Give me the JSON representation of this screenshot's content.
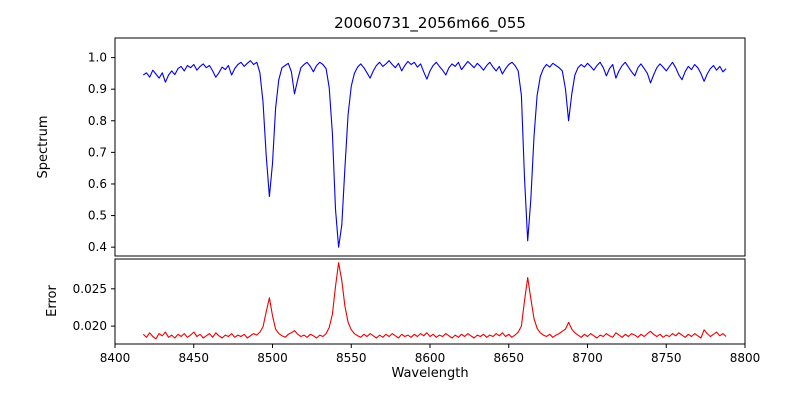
{
  "chart_data": {
    "type": "line",
    "title": "20060731_2056m66_055",
    "xlabel": "Wavelength",
    "x_range": [
      8400,
      8800
    ],
    "x_ticks": [
      8400,
      8450,
      8500,
      8550,
      8600,
      8650,
      8700,
      8750,
      8800
    ],
    "x_tick_labels": [
      "8400",
      "8450",
      "8500",
      "8550",
      "8600",
      "8650",
      "8700",
      "8750",
      "8800"
    ],
    "legend": "none",
    "grid": false,
    "panels": [
      {
        "name": "spectrum",
        "ylabel": "Spectrum",
        "color": "#0000ee",
        "ylim": [
          0.372,
          1.062
        ],
        "y_ticks": [
          0.4,
          0.5,
          0.6,
          0.7,
          0.8,
          0.9,
          1.0
        ],
        "y_tick_labels": [
          "0.4",
          "0.5",
          "0.6",
          "0.7",
          "0.8",
          "0.9",
          "1.0"
        ],
        "features": "Ca II triplet absorption lines at 8498, 8542, 8662; smaller line at 8688",
        "series": {
          "x_start": 8418,
          "x_step": 2,
          "values": [
            0.945,
            0.952,
            0.938,
            0.96,
            0.948,
            0.935,
            0.952,
            0.922,
            0.945,
            0.958,
            0.946,
            0.965,
            0.972,
            0.958,
            0.975,
            0.968,
            0.978,
            0.96,
            0.972,
            0.98,
            0.968,
            0.975,
            0.958,
            0.938,
            0.952,
            0.97,
            0.962,
            0.975,
            0.945,
            0.965,
            0.978,
            0.985,
            0.972,
            0.982,
            0.99,
            0.978,
            0.985,
            0.952,
            0.86,
            0.69,
            0.56,
            0.665,
            0.84,
            0.93,
            0.968,
            0.975,
            0.982,
            0.955,
            0.885,
            0.93,
            0.968,
            0.978,
            0.985,
            0.972,
            0.955,
            0.975,
            0.985,
            0.978,
            0.965,
            0.905,
            0.76,
            0.52,
            0.4,
            0.47,
            0.65,
            0.82,
            0.91,
            0.95,
            0.97,
            0.98,
            0.968,
            0.952,
            0.935,
            0.958,
            0.975,
            0.985,
            0.972,
            0.98,
            0.99,
            0.978,
            0.968,
            0.982,
            0.958,
            0.975,
            0.988,
            0.978,
            0.985,
            0.97,
            0.98,
            0.955,
            0.932,
            0.958,
            0.975,
            0.985,
            0.972,
            0.96,
            0.945,
            0.968,
            0.98,
            0.972,
            0.985,
            0.962,
            0.975,
            0.988,
            0.978,
            0.968,
            0.982,
            0.972,
            0.96,
            0.975,
            0.985,
            0.97,
            0.958,
            0.972,
            0.948,
            0.965,
            0.978,
            0.985,
            0.975,
            0.958,
            0.88,
            0.62,
            0.42,
            0.55,
            0.75,
            0.88,
            0.94,
            0.965,
            0.978,
            0.97,
            0.982,
            0.975,
            0.968,
            0.958,
            0.9,
            0.8,
            0.885,
            0.945,
            0.968,
            0.978,
            0.97,
            0.982,
            0.972,
            0.96,
            0.975,
            0.985,
            0.968,
            0.942,
            0.965,
            0.978,
            0.935,
            0.958,
            0.975,
            0.985,
            0.97,
            0.955,
            0.942,
            0.968,
            0.98,
            0.965,
            0.95,
            0.92,
            0.945,
            0.968,
            0.98,
            0.97,
            0.958,
            0.972,
            0.985,
            0.968,
            0.945,
            0.93,
            0.955,
            0.972,
            0.962,
            0.978,
            0.968,
            0.95,
            0.925,
            0.948,
            0.965,
            0.975,
            0.96,
            0.972,
            0.955,
            0.965
          ]
        }
      },
      {
        "name": "error",
        "ylabel": "Error",
        "color": "#ee0000",
        "ylim": [
          0.0176,
          0.029
        ],
        "y_ticks": [
          0.02,
          0.025
        ],
        "y_tick_labels": [
          "0.020",
          "0.025"
        ],
        "features": "error baseline ~0.0187 with peaks at the absorption lines: 0.0238 @8498, 0.0285 @8542, 0.0265 @8662, 0.0205 @8688",
        "series": {
          "x_start": 8418,
          "x_step": 2,
          "values": [
            0.0189,
            0.0185,
            0.0191,
            0.0186,
            0.0183,
            0.019,
            0.0187,
            0.0192,
            0.0185,
            0.0188,
            0.0184,
            0.0189,
            0.0186,
            0.019,
            0.0185,
            0.0188,
            0.0192,
            0.0186,
            0.0189,
            0.0184,
            0.0187,
            0.019,
            0.0185,
            0.0191,
            0.0187,
            0.0184,
            0.0188,
            0.0186,
            0.019,
            0.0185,
            0.0188,
            0.0186,
            0.0189,
            0.0184,
            0.0187,
            0.019,
            0.0188,
            0.0192,
            0.0199,
            0.0219,
            0.0238,
            0.0214,
            0.0196,
            0.019,
            0.0187,
            0.0185,
            0.0189,
            0.0191,
            0.0194,
            0.0189,
            0.0186,
            0.0188,
            0.0185,
            0.0189,
            0.0187,
            0.0184,
            0.0188,
            0.0186,
            0.019,
            0.0198,
            0.0216,
            0.0253,
            0.0285,
            0.0261,
            0.0227,
            0.0205,
            0.0195,
            0.019,
            0.0187,
            0.0185,
            0.0189,
            0.0186,
            0.019,
            0.0187,
            0.0184,
            0.0188,
            0.0185,
            0.0189,
            0.0186,
            0.019,
            0.0187,
            0.0184,
            0.0189,
            0.0186,
            0.0188,
            0.0185,
            0.0189,
            0.0186,
            0.019,
            0.0187,
            0.0191,
            0.0186,
            0.0189,
            0.0185,
            0.0188,
            0.0186,
            0.019,
            0.0187,
            0.0184,
            0.0188,
            0.0185,
            0.0189,
            0.0186,
            0.019,
            0.0187,
            0.0184,
            0.0188,
            0.0186,
            0.0189,
            0.0185,
            0.0188,
            0.0186,
            0.019,
            0.0187,
            0.0191,
            0.0186,
            0.0189,
            0.0185,
            0.0188,
            0.0192,
            0.02,
            0.0234,
            0.0265,
            0.0237,
            0.021,
            0.0197,
            0.0191,
            0.0188,
            0.0186,
            0.0189,
            0.0185,
            0.0188,
            0.019,
            0.0193,
            0.0196,
            0.0205,
            0.0196,
            0.0191,
            0.0188,
            0.0185,
            0.0189,
            0.0186,
            0.019,
            0.0187,
            0.0184,
            0.0188,
            0.0186,
            0.019,
            0.0187,
            0.0185,
            0.0191,
            0.0188,
            0.0185,
            0.0189,
            0.0186,
            0.019,
            0.0188,
            0.0185,
            0.0189,
            0.0186,
            0.019,
            0.0193,
            0.0189,
            0.0186,
            0.0189,
            0.0185,
            0.0188,
            0.0186,
            0.019,
            0.0187,
            0.0191,
            0.0188,
            0.0185,
            0.0189,
            0.0186,
            0.019,
            0.0187,
            0.0184,
            0.0195,
            0.019,
            0.0186,
            0.0189,
            0.0192,
            0.0187,
            0.019,
            0.0186
          ]
        }
      }
    ]
  }
}
